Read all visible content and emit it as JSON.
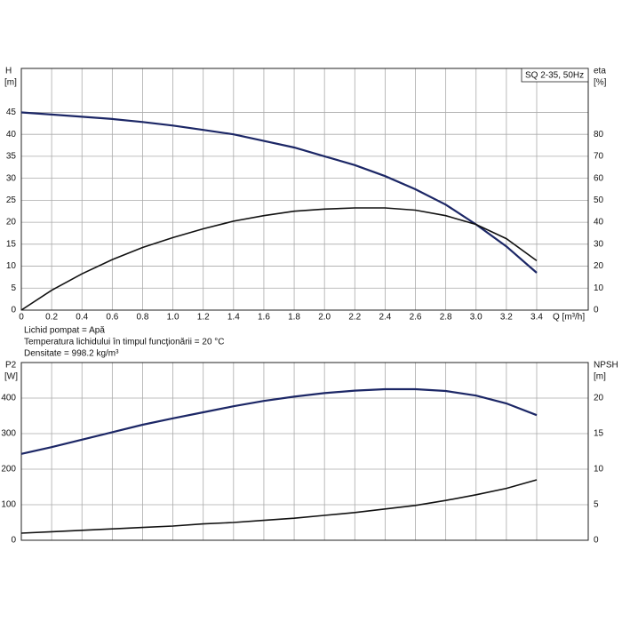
{
  "chart_data": [
    {
      "type": "line",
      "label_box": "SQ 2-35, 50Hz",
      "ylabel": "H",
      "yunit": "[m]",
      "y2label": "eta",
      "y2unit": "[%]",
      "xlabel": "Q [m³/h]",
      "notes": [
        "Lichid pompat = Apă",
        "Temperatura lichidului în timpul funcţionării = 20 °C",
        "Densitate = 998.2 kg/m³"
      ],
      "x": [
        0,
        0.2,
        0.4,
        0.6,
        0.8,
        1.0,
        1.2,
        1.4,
        1.6,
        1.8,
        2.0,
        2.2,
        2.4,
        2.6,
        2.8,
        3.0,
        3.2,
        3.4
      ],
      "xlim": [
        0,
        3.74
      ],
      "xticks": [
        0,
        0.2,
        0.4,
        0.6,
        0.8,
        {
          "value": 1,
          "label": "1.0"
        },
        1.2,
        1.4,
        1.6,
        1.8,
        {
          "value": 2,
          "label": "2.0"
        },
        2.2,
        2.4,
        2.6,
        2.8,
        {
          "value": 3,
          "label": "3.0"
        },
        3.2,
        3.4
      ],
      "show_xtick_labels": true,
      "ylim": [
        0,
        55
      ],
      "yticks": [
        0,
        5,
        10,
        15,
        20,
        25,
        30,
        35,
        40,
        45
      ],
      "y2lim": [
        0,
        110
      ],
      "y2ticks": [
        0,
        10,
        20,
        30,
        40,
        50,
        60,
        70,
        80
      ],
      "grid": true,
      "series": [
        {
          "name": "H",
          "color": "#1c2766",
          "values": [
            45,
            44.5,
            44,
            43.5,
            42.8,
            42,
            41,
            40,
            38.5,
            37,
            35,
            33,
            30.5,
            27.5,
            24,
            19.5,
            14.5,
            8.5
          ]
        },
        {
          "name": "eta",
          "color": "#111111",
          "axis": "y2",
          "values": [
            0,
            9,
            16.5,
            23,
            28.5,
            33,
            37,
            40.5,
            43,
            45,
            46,
            46.5,
            46.5,
            45.5,
            43,
            39,
            32.5,
            22.5
          ]
        }
      ]
    },
    {
      "type": "line",
      "ylabel": "P2",
      "yunit": "[W]",
      "y2label": "NPSH",
      "y2unit": "[m]",
      "x": [
        0,
        0.2,
        0.4,
        0.6,
        0.8,
        1.0,
        1.2,
        1.4,
        1.6,
        1.8,
        2.0,
        2.2,
        2.4,
        2.6,
        2.8,
        3.0,
        3.2,
        3.4
      ],
      "xlim": [
        0,
        3.74
      ],
      "xticks": [
        0,
        0.2,
        0.4,
        0.6,
        0.8,
        1,
        1.2,
        1.4,
        1.6,
        1.8,
        2,
        2.2,
        2.4,
        2.6,
        2.8,
        3,
        3.2,
        3.4
      ],
      "show_xtick_labels": false,
      "ylim": [
        0,
        500
      ],
      "yticks": [
        0,
        100,
        200,
        300,
        400
      ],
      "y2lim": [
        0,
        25
      ],
      "y2ticks": [
        0,
        5,
        10,
        15,
        20
      ],
      "grid": true,
      "series": [
        {
          "name": "P2",
          "color": "#1c2766",
          "values": [
            243,
            262,
            283,
            304,
            325,
            343,
            360,
            377,
            392,
            404,
            414,
            421,
            425,
            425,
            420,
            407,
            385,
            352
          ]
        },
        {
          "name": "NPSH",
          "color": "#111111",
          "axis": "y2",
          "values": [
            1.0,
            1.2,
            1.4,
            1.6,
            1.8,
            2.0,
            2.3,
            2.5,
            2.8,
            3.1,
            3.5,
            3.9,
            4.4,
            4.9,
            5.6,
            6.4,
            7.3,
            8.5
          ]
        }
      ]
    }
  ]
}
